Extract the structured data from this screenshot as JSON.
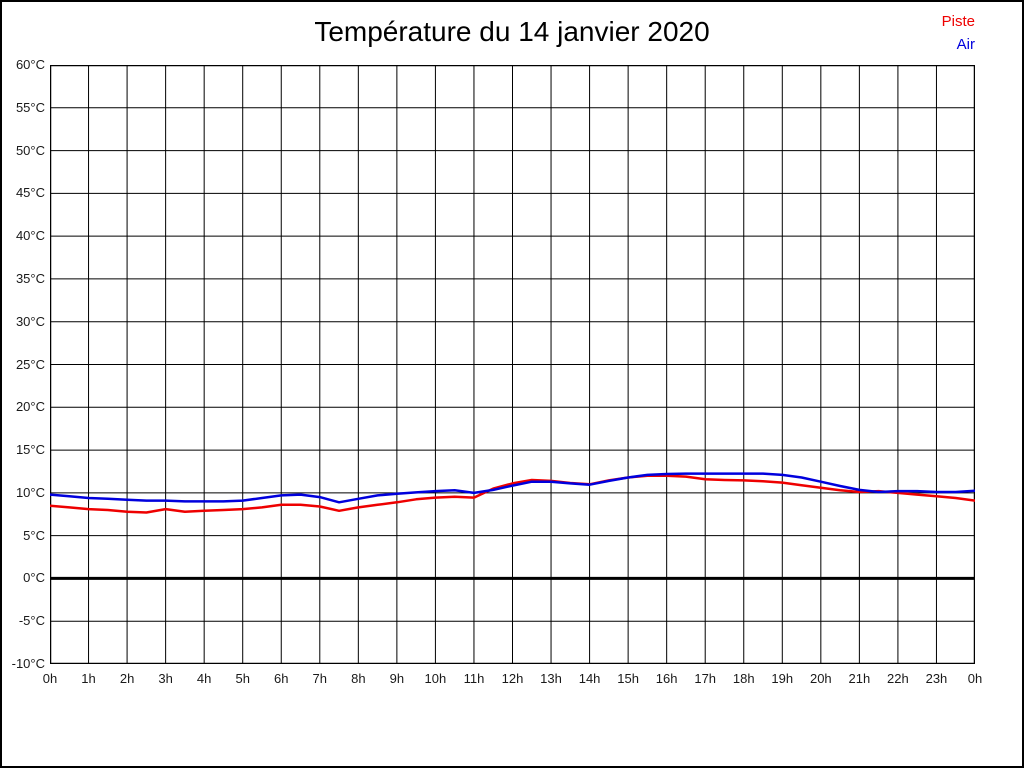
{
  "title": "Température du 14 janvier 2020",
  "legend": {
    "piste_label": "Piste",
    "air_label": "Air"
  },
  "colors": {
    "piste": "#ee0000",
    "air": "#0000dd",
    "grid": "#000000",
    "zero_line": "#000000",
    "text": "#1a1a1a",
    "background": "#ffffff",
    "frame_border": "#000000"
  },
  "chart_data": {
    "type": "line",
    "title": "Température du 14 janvier 2020",
    "xlabel": "",
    "ylabel": "",
    "xlim": [
      0,
      24
    ],
    "ylim": [
      -10,
      60
    ],
    "grid": true,
    "legend_position": "top-right",
    "zero_line_value": 0,
    "x_unit": "hours",
    "y_unit": "°C",
    "x_tick_labels": [
      "0h",
      "1h",
      "2h",
      "3h",
      "4h",
      "5h",
      "6h",
      "7h",
      "8h",
      "9h",
      "10h",
      "11h",
      "12h",
      "13h",
      "14h",
      "15h",
      "16h",
      "17h",
      "18h",
      "19h",
      "20h",
      "21h",
      "22h",
      "23h",
      "0h"
    ],
    "x_tick_values": [
      0,
      1,
      2,
      3,
      4,
      5,
      6,
      7,
      8,
      9,
      10,
      11,
      12,
      13,
      14,
      15,
      16,
      17,
      18,
      19,
      20,
      21,
      22,
      23,
      24
    ],
    "y_tick_labels": [
      "60°C",
      "55°C",
      "50°C",
      "45°C",
      "40°C",
      "35°C",
      "30°C",
      "25°C",
      "20°C",
      "15°C",
      "10°C",
      "5°C",
      "0°C",
      "-5°C",
      "-10°C"
    ],
    "y_tick_values": [
      60,
      55,
      50,
      45,
      40,
      35,
      30,
      25,
      20,
      15,
      10,
      5,
      0,
      -5,
      -10
    ],
    "x": [
      0,
      0.5,
      1,
      1.5,
      2,
      2.5,
      3,
      3.5,
      4,
      4.5,
      5,
      5.5,
      6,
      6.5,
      7,
      7.5,
      8,
      8.5,
      9,
      9.5,
      10,
      10.5,
      11,
      11.5,
      12,
      12.5,
      13,
      13.5,
      14,
      14.5,
      15,
      15.5,
      16,
      16.5,
      17,
      17.5,
      18,
      18.5,
      19,
      19.5,
      20,
      20.5,
      21,
      21.5,
      22,
      22.5,
      23,
      23.5,
      24
    ],
    "series": [
      {
        "name": "Piste",
        "color": "#ee0000",
        "values": [
          8.5,
          8.3,
          8.1,
          8.0,
          7.8,
          7.7,
          8.1,
          7.8,
          7.9,
          8.0,
          8.1,
          8.3,
          8.6,
          8.6,
          8.4,
          7.9,
          8.3,
          8.6,
          8.9,
          9.25,
          9.45,
          9.55,
          9.45,
          10.5,
          11.1,
          11.5,
          11.4,
          11.15,
          11.0,
          11.45,
          11.8,
          12.0,
          12.0,
          11.9,
          11.6,
          11.5,
          11.45,
          11.35,
          11.2,
          10.9,
          10.6,
          10.3,
          10.1,
          10.2,
          10.0,
          9.8,
          9.6,
          9.4,
          9.1
        ]
      },
      {
        "name": "Air",
        "color": "#0000dd",
        "values": [
          9.8,
          9.6,
          9.4,
          9.3,
          9.2,
          9.1,
          9.1,
          9.0,
          9.0,
          9.0,
          9.1,
          9.4,
          9.7,
          9.8,
          9.5,
          8.9,
          9.3,
          9.7,
          9.9,
          10.05,
          10.2,
          10.3,
          10.0,
          10.35,
          10.85,
          11.3,
          11.3,
          11.1,
          10.95,
          11.4,
          11.8,
          12.1,
          12.2,
          12.25,
          12.25,
          12.25,
          12.25,
          12.25,
          12.1,
          11.8,
          11.3,
          10.8,
          10.35,
          10.1,
          10.2,
          10.2,
          10.1,
          10.1,
          10.25
        ]
      }
    ]
  }
}
